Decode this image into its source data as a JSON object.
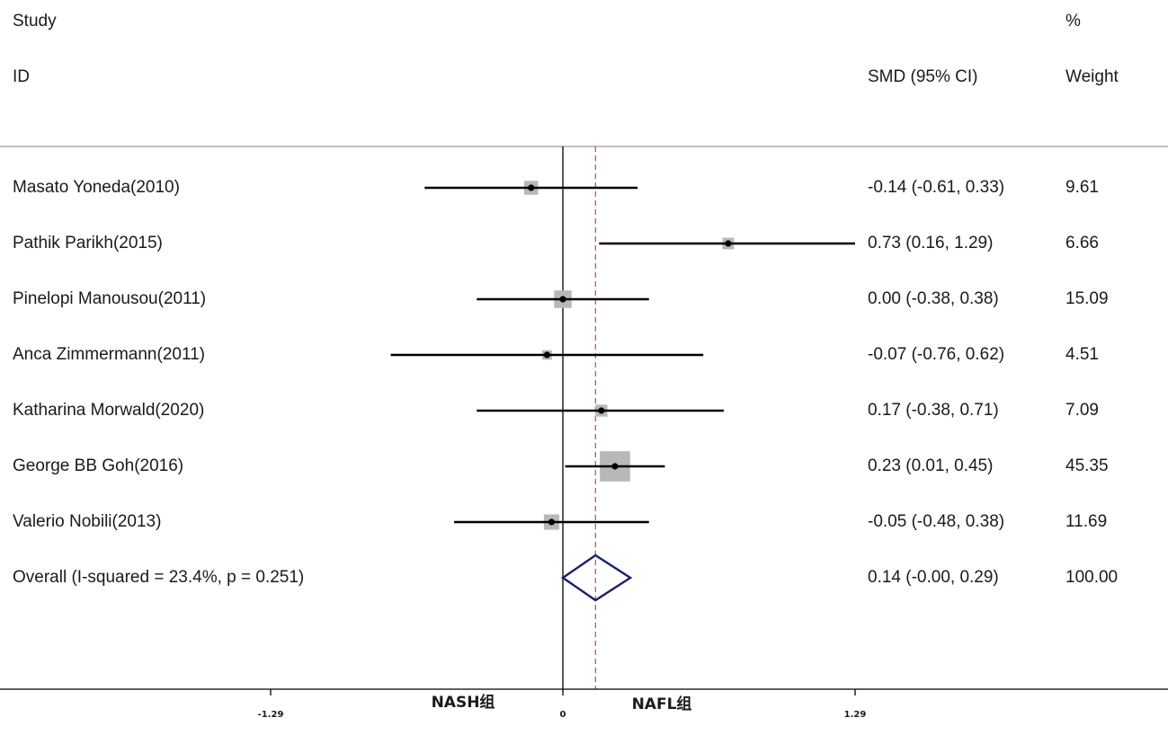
{
  "header": {
    "study": "Study",
    "id": "ID",
    "effect": "SMD (95% CI)",
    "weight_pct": "%",
    "weight": "Weight"
  },
  "chart_data": {
    "type": "forest",
    "effect_measure": "SMD (95% CI)",
    "null_value": 0,
    "xlim": [
      -1.29,
      1.29
    ],
    "ticks": [
      "-1.29",
      "0",
      "1.29"
    ],
    "left_side_label": "NASH组",
    "right_side_label": "NAFL组",
    "studies": [
      {
        "label": "Masato Yoneda(2010)",
        "estimate": -0.14,
        "lower": -0.61,
        "upper": 0.33,
        "ci_text": "-0.14 (-0.61, 0.33)",
        "weight": 9.61,
        "weight_text": "9.61"
      },
      {
        "label": "Pathik Parikh(2015)",
        "estimate": 0.73,
        "lower": 0.16,
        "upper": 1.29,
        "ci_text": "0.73 (0.16, 1.29)",
        "weight": 6.66,
        "weight_text": "6.66"
      },
      {
        "label": "Pinelopi Manousou(2011)",
        "estimate": 0.0,
        "lower": -0.38,
        "upper": 0.38,
        "ci_text": "0.00 (-0.38, 0.38)",
        "weight": 15.09,
        "weight_text": "15.09"
      },
      {
        "label": "Anca Zimmermann(2011)",
        "estimate": -0.07,
        "lower": -0.76,
        "upper": 0.62,
        "ci_text": "-0.07 (-0.76, 0.62)",
        "weight": 4.51,
        "weight_text": "4.51"
      },
      {
        "label": "Katharina Morwald(2020)",
        "estimate": 0.17,
        "lower": -0.38,
        "upper": 0.71,
        "ci_text": "0.17 (-0.38, 0.71)",
        "weight": 7.09,
        "weight_text": "7.09"
      },
      {
        "label": "George BB Goh(2016)",
        "estimate": 0.23,
        "lower": 0.01,
        "upper": 0.45,
        "ci_text": "0.23 (0.01, 0.45)",
        "weight": 45.35,
        "weight_text": "45.35"
      },
      {
        "label": "Valerio Nobili(2013)",
        "estimate": -0.05,
        "lower": -0.48,
        "upper": 0.38,
        "ci_text": "-0.05 (-0.48, 0.38)",
        "weight": 11.69,
        "weight_text": "11.69"
      }
    ],
    "overall": {
      "label": "Overall  (I-squared = 23.4%, p = 0.251)",
      "estimate": 0.14,
      "lower": -0.0,
      "upper": 0.29,
      "ci_text": "0.14 (-0.00, 0.29)",
      "weight_text": "100.00"
    },
    "colors": {
      "ci_line": "#000000",
      "weight_box": "#b8b8b8",
      "point": "#000000",
      "diamond": "#1b1f6e",
      "overall_line": "#c0392b",
      "axis": "#000000",
      "separator": "#9a9a9a"
    }
  }
}
